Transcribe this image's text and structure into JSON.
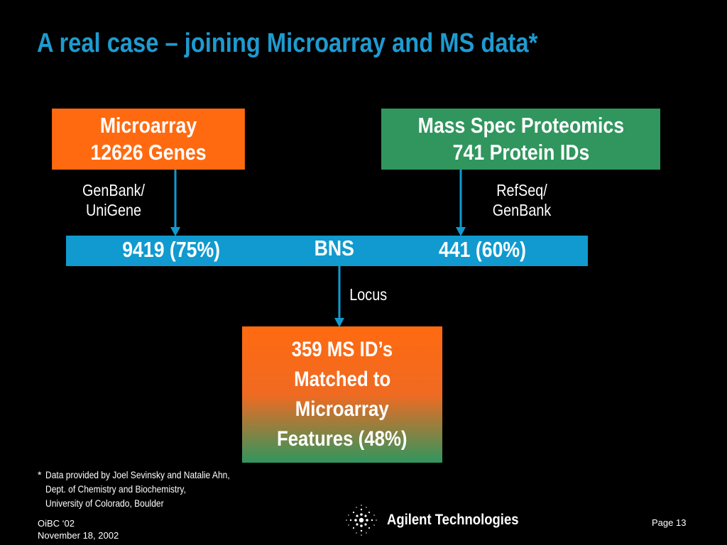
{
  "slide": {
    "title": "A real case – joining Microarray and MS data*"
  },
  "microarray_box": {
    "line1": "Microarray",
    "line2": "12626 Genes"
  },
  "ms_box": {
    "line1": "Mass Spec Proteomics",
    "line2": "741 Protein IDs"
  },
  "left_label": {
    "line1": "GenBank/",
    "line2": "UniGene"
  },
  "right_label": {
    "line1": "RefSeq/",
    "line2": "GenBank"
  },
  "bns_bar": {
    "left_value": "9419 (75%)",
    "center_label": "BNS",
    "right_value": "441 (60%)"
  },
  "locus_label": "Locus",
  "result_box": {
    "line1": "359 MS ID’s",
    "line2": "Matched to",
    "line3": "Microarray",
    "line4": "Features (48%)"
  },
  "footnote": {
    "marker": "*",
    "line1": "Data provided by Joel Sevinsky and Natalie Ahn,",
    "line2": "Dept. of Chemistry and Biochemistry,",
    "line3": "University of Colorado, Boulder"
  },
  "footer": {
    "event": "OiBC ‘02",
    "date": "November 18, 2002",
    "company": "Agilent Technologies",
    "page": "Page 13"
  },
  "icons": {
    "logo": "agilent-spark-logo-icon"
  },
  "colors": {
    "title": "#1e9bd0",
    "microarray_box": "#ff6a10",
    "ms_box": "#30965e",
    "bns_bar": "#109acf",
    "arrows": "#109acf",
    "background": "#000000"
  }
}
